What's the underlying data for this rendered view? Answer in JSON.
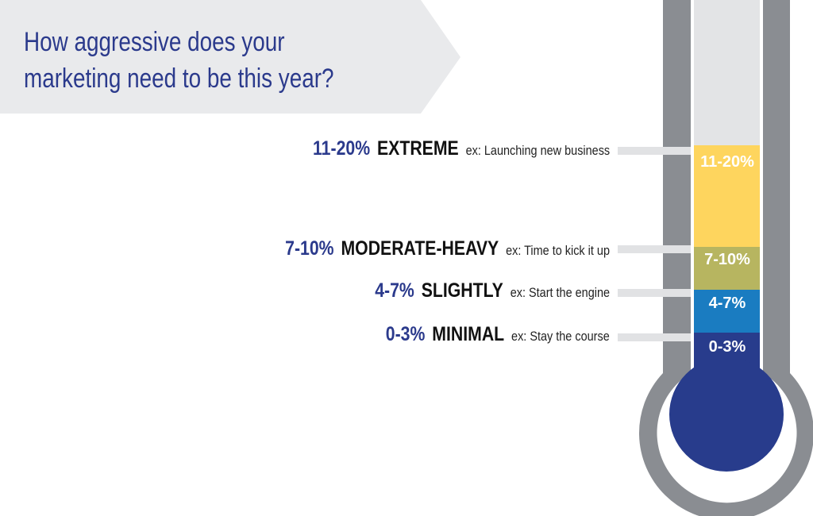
{
  "title": {
    "line1": "How aggressive does your",
    "line2": "marketing need to be this year?"
  },
  "colors": {
    "navy": "#2b3a8c",
    "banner": "#e9eaec",
    "thermometer_frame": "#8a8d92",
    "tube": "#e3e4e6",
    "extreme": "#fed55e",
    "moderate_heavy": "#b7b560",
    "slightly": "#1a7cc1",
    "minimal": "#283c8c"
  },
  "levels": [
    {
      "range": "11-20%",
      "name": "EXTREME",
      "example": "ex: Launching new business",
      "segment_label": "11-20%"
    },
    {
      "range": "7-10%",
      "name": "MODERATE-HEAVY",
      "example": "ex: Time to kick it up",
      "segment_label": "7-10%"
    },
    {
      "range": "4-7%",
      "name": "SLIGHTLY",
      "example": "ex: Start the engine",
      "segment_label": "4-7%"
    },
    {
      "range": "0-3%",
      "name": "MINIMAL",
      "example": "ex: Stay the course",
      "segment_label": "0-3%"
    }
  ]
}
